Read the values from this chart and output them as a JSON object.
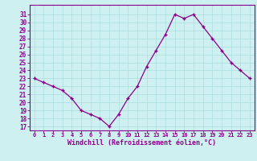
{
  "x": [
    0,
    1,
    2,
    3,
    4,
    5,
    6,
    7,
    8,
    9,
    10,
    11,
    12,
    13,
    14,
    15,
    16,
    17,
    18,
    19,
    20,
    21,
    22,
    23
  ],
  "y": [
    23,
    22.5,
    22,
    21.5,
    20.5,
    19,
    18.5,
    18,
    17,
    18.5,
    20.5,
    22,
    24.5,
    26.5,
    28.5,
    31,
    30.5,
    31,
    29.5,
    28,
    26.5,
    25,
    24,
    23
  ],
  "line_color": "#8b008b",
  "marker_color": "#8b008b",
  "bg_color": "#cff0f0",
  "grid_color": "#aadddd",
  "xlabel": "Windchill (Refroidissement éolien,°C)",
  "xlabel_color": "#8b008b",
  "ylabel_ticks": [
    17,
    18,
    19,
    20,
    21,
    22,
    23,
    24,
    25,
    26,
    27,
    28,
    29,
    30,
    31
  ],
  "xlim": [
    -0.5,
    23.5
  ],
  "ylim": [
    16.5,
    32.2
  ],
  "xtick_labels": [
    "0",
    "1",
    "2",
    "3",
    "4",
    "5",
    "6",
    "7",
    "8",
    "9",
    "10",
    "11",
    "12",
    "13",
    "14",
    "15",
    "16",
    "17",
    "18",
    "19",
    "20",
    "21",
    "22",
    "23"
  ],
  "tick_color": "#8b008b",
  "spine_color": "#8b008b"
}
